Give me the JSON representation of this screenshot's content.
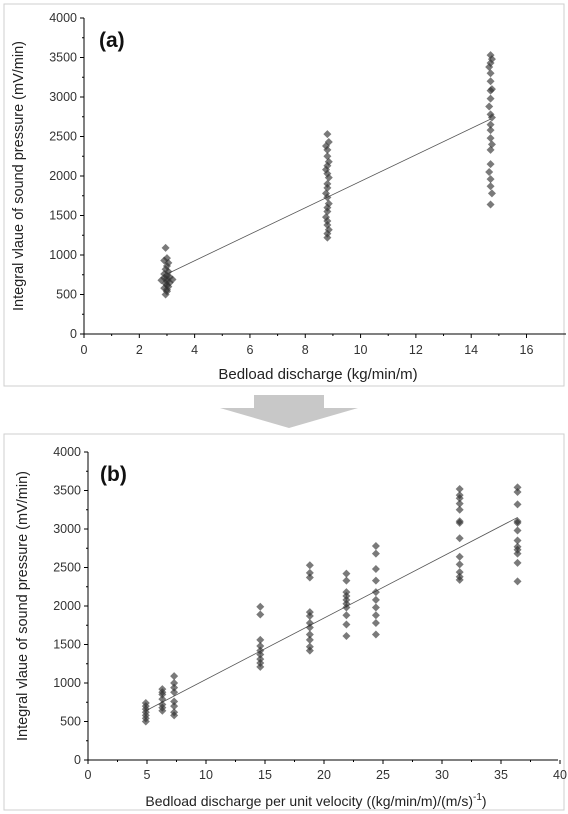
{
  "chart_data": [
    {
      "type": "scatter",
      "panel_label": "(a)",
      "xlabel": "Bedload discharge (kg/min/m)",
      "ylabel": "Integral vlaue of sound pressure (mV/min)",
      "xlim": [
        0,
        17.5
      ],
      "ylim": [
        0,
        4000
      ],
      "xticks": [
        0,
        2,
        4,
        6,
        8,
        10,
        12,
        14,
        16
      ],
      "yticks": [
        0,
        500,
        1000,
        1500,
        2000,
        2500,
        3000,
        3500,
        4000
      ],
      "grid": false,
      "marker_color": "#333333",
      "fit_line": {
        "x": [
          3,
          14.7
        ],
        "y": [
          760,
          2720
        ]
      },
      "points": [
        [
          2.95,
          1090
        ],
        [
          3.0,
          960
        ],
        [
          2.9,
          930
        ],
        [
          3.05,
          900
        ],
        [
          3.0,
          860
        ],
        [
          2.95,
          820
        ],
        [
          3.05,
          790
        ],
        [
          2.9,
          760
        ],
        [
          3.0,
          740
        ],
        [
          3.1,
          720
        ],
        [
          2.9,
          710
        ],
        [
          3.0,
          700
        ],
        [
          3.2,
          690
        ],
        [
          2.8,
          680
        ],
        [
          3.0,
          670
        ],
        [
          3.1,
          650
        ],
        [
          2.95,
          640
        ],
        [
          3.0,
          620
        ],
        [
          3.05,
          600
        ],
        [
          2.9,
          580
        ],
        [
          3.0,
          560
        ],
        [
          3.0,
          540
        ],
        [
          2.95,
          500
        ],
        [
          8.8,
          2530
        ],
        [
          8.85,
          2430
        ],
        [
          8.75,
          2380
        ],
        [
          8.8,
          2330
        ],
        [
          8.8,
          2250
        ],
        [
          8.85,
          2180
        ],
        [
          8.8,
          2130
        ],
        [
          8.75,
          2080
        ],
        [
          8.8,
          2030
        ],
        [
          8.85,
          1980
        ],
        [
          8.8,
          1900
        ],
        [
          8.8,
          1850
        ],
        [
          8.75,
          1780
        ],
        [
          8.8,
          1730
        ],
        [
          8.85,
          1650
        ],
        [
          8.8,
          1600
        ],
        [
          8.8,
          1550
        ],
        [
          8.75,
          1480
        ],
        [
          8.8,
          1430
        ],
        [
          8.8,
          1380
        ],
        [
          8.85,
          1320
        ],
        [
          8.8,
          1270
        ],
        [
          8.8,
          1220
        ],
        [
          14.7,
          3530
        ],
        [
          14.75,
          3480
        ],
        [
          14.7,
          3430
        ],
        [
          14.65,
          3380
        ],
        [
          14.7,
          3300
        ],
        [
          14.7,
          3200
        ],
        [
          14.75,
          3100
        ],
        [
          14.7,
          3080
        ],
        [
          14.7,
          2980
        ],
        [
          14.65,
          2880
        ],
        [
          14.7,
          2780
        ],
        [
          14.75,
          2740
        ],
        [
          14.7,
          2650
        ],
        [
          14.7,
          2580
        ],
        [
          14.7,
          2480
        ],
        [
          14.75,
          2400
        ],
        [
          14.7,
          2330
        ],
        [
          14.7,
          2150
        ],
        [
          14.65,
          2050
        ],
        [
          14.7,
          1960
        ],
        [
          14.7,
          1870
        ],
        [
          14.75,
          1780
        ],
        [
          14.7,
          1640
        ]
      ]
    },
    {
      "type": "scatter",
      "panel_label": "(b)",
      "xlabel": "Bedload discharge per unit velocity ((kg/min/m)/(m/s)",
      "xlabel_sup": "-1",
      "xlabel_close": ")",
      "ylabel": "Integral vlaue of sound pressure (mV/min)",
      "xlim": [
        0,
        40
      ],
      "ylim": [
        0,
        4000
      ],
      "xticks": [
        0,
        5,
        10,
        15,
        20,
        25,
        30,
        35,
        40
      ],
      "yticks": [
        0,
        500,
        1000,
        1500,
        2000,
        2500,
        3000,
        3500,
        4000
      ],
      "grid": false,
      "marker_color": "#333333",
      "fit_line": {
        "x": [
          4.9,
          36.4
        ],
        "y": [
          640,
          3150
        ]
      },
      "points": [
        [
          4.9,
          740
        ],
        [
          4.9,
          700
        ],
        [
          4.9,
          660
        ],
        [
          4.9,
          620
        ],
        [
          4.9,
          580
        ],
        [
          4.9,
          540
        ],
        [
          4.9,
          500
        ],
        [
          6.3,
          920
        ],
        [
          6.3,
          880
        ],
        [
          6.3,
          850
        ],
        [
          6.3,
          790
        ],
        [
          6.3,
          720
        ],
        [
          6.3,
          680
        ],
        [
          6.3,
          640
        ],
        [
          7.3,
          1090
        ],
        [
          7.3,
          1000
        ],
        [
          7.3,
          940
        ],
        [
          7.3,
          880
        ],
        [
          7.3,
          760
        ],
        [
          7.3,
          700
        ],
        [
          7.3,
          620
        ],
        [
          7.3,
          580
        ],
        [
          14.6,
          1990
        ],
        [
          14.6,
          1890
        ],
        [
          14.6,
          1560
        ],
        [
          14.6,
          1480
        ],
        [
          14.6,
          1420
        ],
        [
          14.6,
          1370
        ],
        [
          14.6,
          1310
        ],
        [
          14.6,
          1260
        ],
        [
          14.6,
          1210
        ],
        [
          18.8,
          2530
        ],
        [
          18.8,
          2430
        ],
        [
          18.8,
          2370
        ],
        [
          18.8,
          1920
        ],
        [
          18.8,
          1870
        ],
        [
          18.8,
          1780
        ],
        [
          18.8,
          1720
        ],
        [
          18.8,
          1630
        ],
        [
          18.8,
          1560
        ],
        [
          18.8,
          1470
        ],
        [
          18.8,
          1420
        ],
        [
          21.9,
          2420
        ],
        [
          21.9,
          2330
        ],
        [
          21.9,
          2180
        ],
        [
          21.9,
          2130
        ],
        [
          21.9,
          2080
        ],
        [
          21.9,
          2030
        ],
        [
          21.9,
          1980
        ],
        [
          21.9,
          1880
        ],
        [
          21.9,
          1760
        ],
        [
          21.9,
          1610
        ],
        [
          24.4,
          2780
        ],
        [
          24.4,
          2680
        ],
        [
          24.4,
          2480
        ],
        [
          24.4,
          2330
        ],
        [
          24.4,
          2180
        ],
        [
          24.4,
          2080
        ],
        [
          24.4,
          1980
        ],
        [
          24.4,
          1880
        ],
        [
          24.4,
          1780
        ],
        [
          24.4,
          1630
        ],
        [
          31.5,
          3520
        ],
        [
          31.5,
          3440
        ],
        [
          31.5,
          3400
        ],
        [
          31.5,
          3330
        ],
        [
          31.5,
          3250
        ],
        [
          31.5,
          3100
        ],
        [
          31.5,
          3080
        ],
        [
          31.5,
          2880
        ],
        [
          31.5,
          2640
        ],
        [
          31.5,
          2540
        ],
        [
          31.5,
          2440
        ],
        [
          31.5,
          2380
        ],
        [
          31.5,
          2340
        ],
        [
          36.4,
          3540
        ],
        [
          36.4,
          3480
        ],
        [
          36.4,
          3320
        ],
        [
          36.4,
          3100
        ],
        [
          36.4,
          3080
        ],
        [
          36.4,
          2980
        ],
        [
          36.4,
          2850
        ],
        [
          36.4,
          2770
        ],
        [
          36.4,
          2730
        ],
        [
          36.4,
          2680
        ],
        [
          36.4,
          2560
        ],
        [
          36.4,
          2320
        ]
      ]
    }
  ],
  "arrow": {
    "color": "#c8c8c8",
    "icon": "down-arrow-icon"
  }
}
